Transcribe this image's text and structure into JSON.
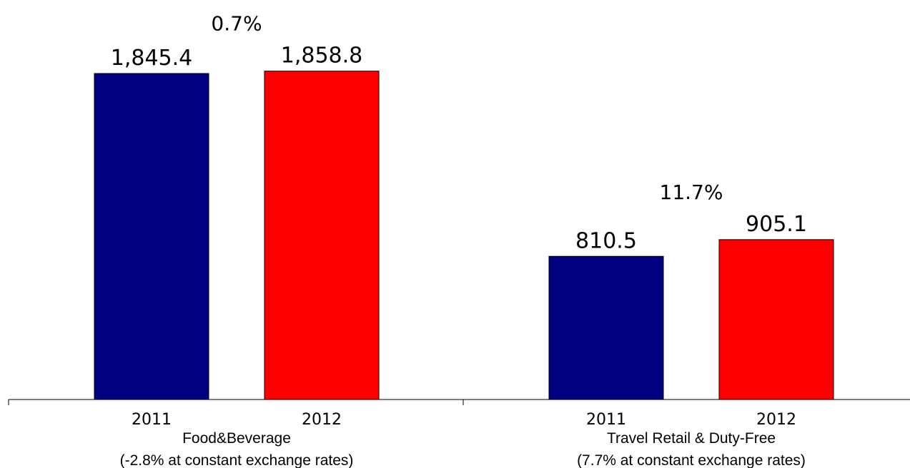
{
  "chart_data": {
    "type": "bar",
    "title": "",
    "xlabel": "",
    "ylabel": "",
    "ylim": [
      0,
      1900
    ],
    "grid": false,
    "legend": "none",
    "groups": [
      {
        "name": "Food&Beverage",
        "note": "(-2.8% at constant exchange rates)",
        "growth": "0.7%",
        "bars": [
          {
            "year": "2011",
            "value": 1845.4,
            "label": "1,845.4",
            "color": "#000080"
          },
          {
            "year": "2012",
            "value": 1858.8,
            "label": "1,858.8",
            "color": "#ff0000"
          }
        ]
      },
      {
        "name": "Travel Retail & Duty-Free",
        "note": "(7.7% at constant exchange rates)",
        "growth": "11.7%",
        "bars": [
          {
            "year": "2011",
            "value": 810.5,
            "label": "810.5",
            "color": "#000080"
          },
          {
            "year": "2012",
            "value": 905.1,
            "label": "905.1",
            "color": "#ff0000"
          }
        ]
      }
    ]
  }
}
